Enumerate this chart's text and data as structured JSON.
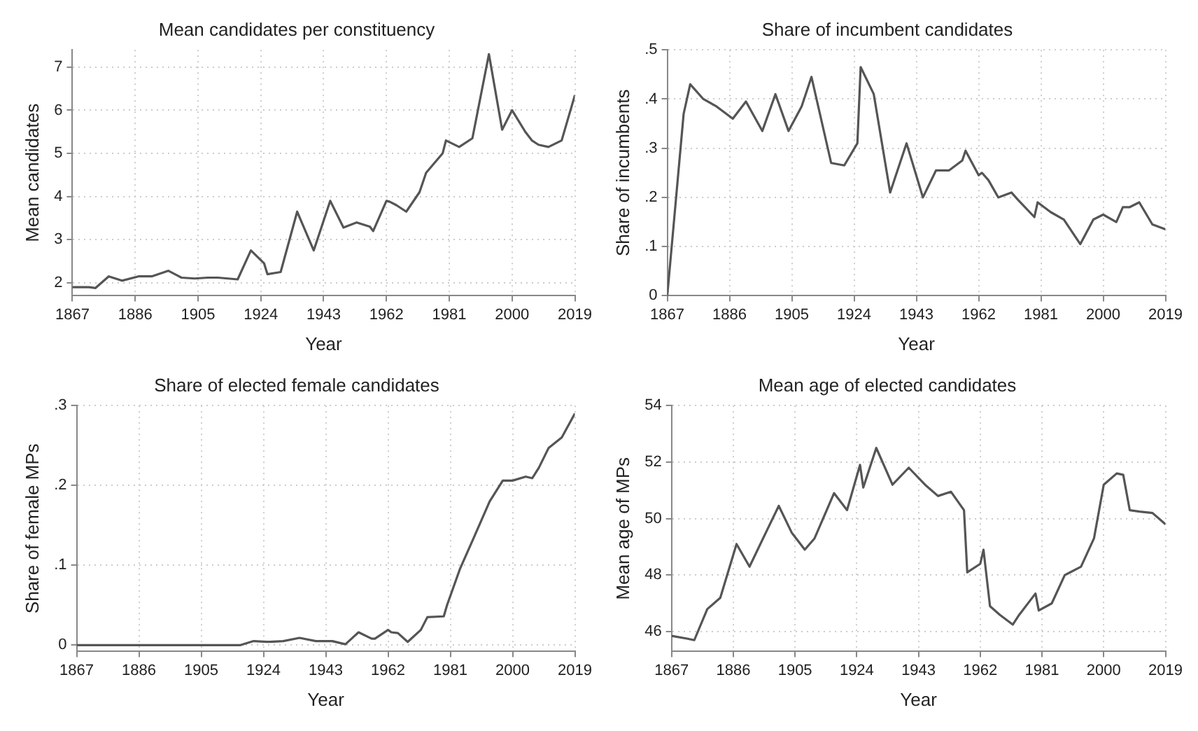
{
  "chart_data": [
    {
      "type": "line",
      "title": "Mean candidates per constituency",
      "xlabel": "Year",
      "ylabel": "Mean candidates",
      "x": [
        1867,
        1872,
        1874,
        1878,
        1882,
        1887,
        1891,
        1896,
        1900,
        1904,
        1908,
        1911,
        1917,
        1921,
        1925,
        1926,
        1930,
        1935,
        1940,
        1945,
        1949,
        1953,
        1957,
        1958,
        1962,
        1963,
        1965,
        1968,
        1972,
        1974,
        1979,
        1980,
        1984,
        1988,
        1993,
        1997,
        2000,
        2004,
        2006,
        2008,
        2011,
        2015,
        2019
      ],
      "series": [
        {
          "color": "#555555",
          "values": [
            1.9,
            1.9,
            1.88,
            2.15,
            2.05,
            2.15,
            2.15,
            2.28,
            2.12,
            2.1,
            2.12,
            2.12,
            2.08,
            2.75,
            2.45,
            2.2,
            2.25,
            3.65,
            2.75,
            3.9,
            3.28,
            3.4,
            3.3,
            3.2,
            3.9,
            3.88,
            3.8,
            3.65,
            4.1,
            4.55,
            5.0,
            5.3,
            5.15,
            5.35,
            7.3,
            5.55,
            6.0,
            5.5,
            5.3,
            5.2,
            5.15,
            5.3,
            6.35
          ]
        }
      ],
      "xlim": [
        1867,
        2019
      ],
      "xticks": [
        1867,
        1886,
        1905,
        1924,
        1943,
        1962,
        1981,
        2000,
        2019
      ],
      "ylim": [
        1.7,
        7.4
      ],
      "yticks": [
        2,
        3,
        4,
        5,
        6,
        7
      ],
      "grid": true,
      "legend": false,
      "marker": "none",
      "line_style": "solid"
    },
    {
      "type": "line",
      "title": "Share of incumbent candidates",
      "xlabel": "Year",
      "ylabel": "Share of incumbents",
      "x": [
        1867,
        1872,
        1874,
        1878,
        1882,
        1887,
        1891,
        1896,
        1900,
        1904,
        1908,
        1911,
        1917,
        1921,
        1925,
        1926,
        1930,
        1935,
        1940,
        1945,
        1949,
        1953,
        1957,
        1958,
        1962,
        1963,
        1965,
        1968,
        1972,
        1974,
        1979,
        1980,
        1984,
        1988,
        1993,
        1997,
        2000,
        2004,
        2006,
        2008,
        2011,
        2015,
        2019
      ],
      "series": [
        {
          "color": "#555555",
          "values": [
            0,
            0.37,
            0.43,
            0.4,
            0.385,
            0.36,
            0.395,
            0.335,
            0.41,
            0.335,
            0.385,
            0.445,
            0.27,
            0.265,
            0.31,
            0.465,
            0.41,
            0.21,
            0.31,
            0.2,
            0.255,
            0.255,
            0.275,
            0.295,
            0.245,
            0.25,
            0.235,
            0.2,
            0.21,
            0.195,
            0.16,
            0.19,
            0.17,
            0.155,
            0.105,
            0.155,
            0.165,
            0.15,
            0.18,
            0.18,
            0.19,
            0.145,
            0.135
          ]
        }
      ],
      "xlim": [
        1867,
        2019
      ],
      "xticks": [
        1867,
        1886,
        1905,
        1924,
        1943,
        1962,
        1981,
        2000,
        2019
      ],
      "ylim": [
        0,
        0.5
      ],
      "yticks": [
        0,
        {
          "value": 0.1,
          "label": ".1"
        },
        {
          "value": 0.2,
          "label": ".2"
        },
        {
          "value": 0.3,
          "label": ".3"
        },
        {
          "value": 0.4,
          "label": ".4"
        },
        {
          "value": 0.5,
          "label": ".5"
        }
      ],
      "grid": true,
      "legend": false,
      "marker": "none",
      "line_style": "solid"
    },
    {
      "type": "line",
      "title": "Share of elected female candidates",
      "xlabel": "Year",
      "ylabel": "Share of female MPs",
      "x": [
        1867,
        1872,
        1874,
        1878,
        1882,
        1887,
        1891,
        1896,
        1900,
        1904,
        1908,
        1911,
        1917,
        1921,
        1925,
        1926,
        1930,
        1935,
        1940,
        1945,
        1949,
        1953,
        1957,
        1958,
        1962,
        1963,
        1965,
        1968,
        1972,
        1974,
        1979,
        1980,
        1984,
        1988,
        1993,
        1997,
        2000,
        2004,
        2006,
        2008,
        2011,
        2015,
        2019
      ],
      "series": [
        {
          "color": "#555555",
          "values": [
            0,
            0,
            0,
            0,
            0,
            0,
            0,
            0,
            0,
            0,
            0,
            0,
            0,
            0.005,
            0.004,
            0.004,
            0.005,
            0.009,
            0.005,
            0.005,
            0.001,
            0.016,
            0.008,
            0.008,
            0.019,
            0.016,
            0.015,
            0.004,
            0.019,
            0.035,
            0.036,
            0.05,
            0.096,
            0.133,
            0.18,
            0.206,
            0.206,
            0.211,
            0.209,
            0.222,
            0.247,
            0.26,
            0.29
          ]
        }
      ],
      "xlim": [
        1867,
        2019
      ],
      "xticks": [
        1867,
        1886,
        1905,
        1924,
        1943,
        1962,
        1981,
        2000,
        2019
      ],
      "ylim": [
        -0.008,
        0.3
      ],
      "yticks": [
        0,
        {
          "value": 0.1,
          "label": ".1"
        },
        {
          "value": 0.2,
          "label": ".2"
        },
        {
          "value": 0.3,
          "label": ".3"
        }
      ],
      "grid": true,
      "legend": false,
      "marker": "none",
      "line_style": "solid"
    },
    {
      "type": "line",
      "title": "Mean age of elected candidates",
      "xlabel": "Year",
      "ylabel": "Mean age of MPs",
      "x": [
        1867,
        1872,
        1874,
        1878,
        1882,
        1887,
        1891,
        1896,
        1900,
        1904,
        1908,
        1911,
        1917,
        1921,
        1925,
        1926,
        1930,
        1935,
        1940,
        1945,
        1949,
        1953,
        1957,
        1958,
        1962,
        1963,
        1965,
        1968,
        1972,
        1974,
        1979,
        1980,
        1984,
        1988,
        1993,
        1997,
        2000,
        2004,
        2006,
        2008,
        2011,
        2015,
        2019
      ],
      "series": [
        {
          "color": "#555555",
          "values": [
            45.85,
            45.75,
            45.7,
            46.8,
            47.2,
            49.1,
            48.3,
            49.5,
            50.45,
            49.5,
            48.9,
            49.3,
            50.9,
            50.3,
            51.9,
            51.1,
            52.5,
            51.2,
            51.8,
            51.2,
            50.8,
            50.95,
            50.3,
            48.1,
            48.4,
            48.9,
            46.9,
            46.6,
            46.25,
            46.6,
            47.35,
            46.75,
            47.0,
            48.0,
            48.3,
            49.3,
            51.2,
            51.6,
            51.55,
            50.3,
            50.25,
            50.2,
            49.8
          ]
        }
      ],
      "xlim": [
        1867,
        2019
      ],
      "xticks": [
        1867,
        1886,
        1905,
        1924,
        1943,
        1962,
        1981,
        2000,
        2019
      ],
      "ylim": [
        45.3,
        54
      ],
      "yticks": [
        46,
        48,
        50,
        52,
        54
      ],
      "grid": true,
      "legend": false,
      "marker": "none",
      "line_style": "solid"
    }
  ]
}
